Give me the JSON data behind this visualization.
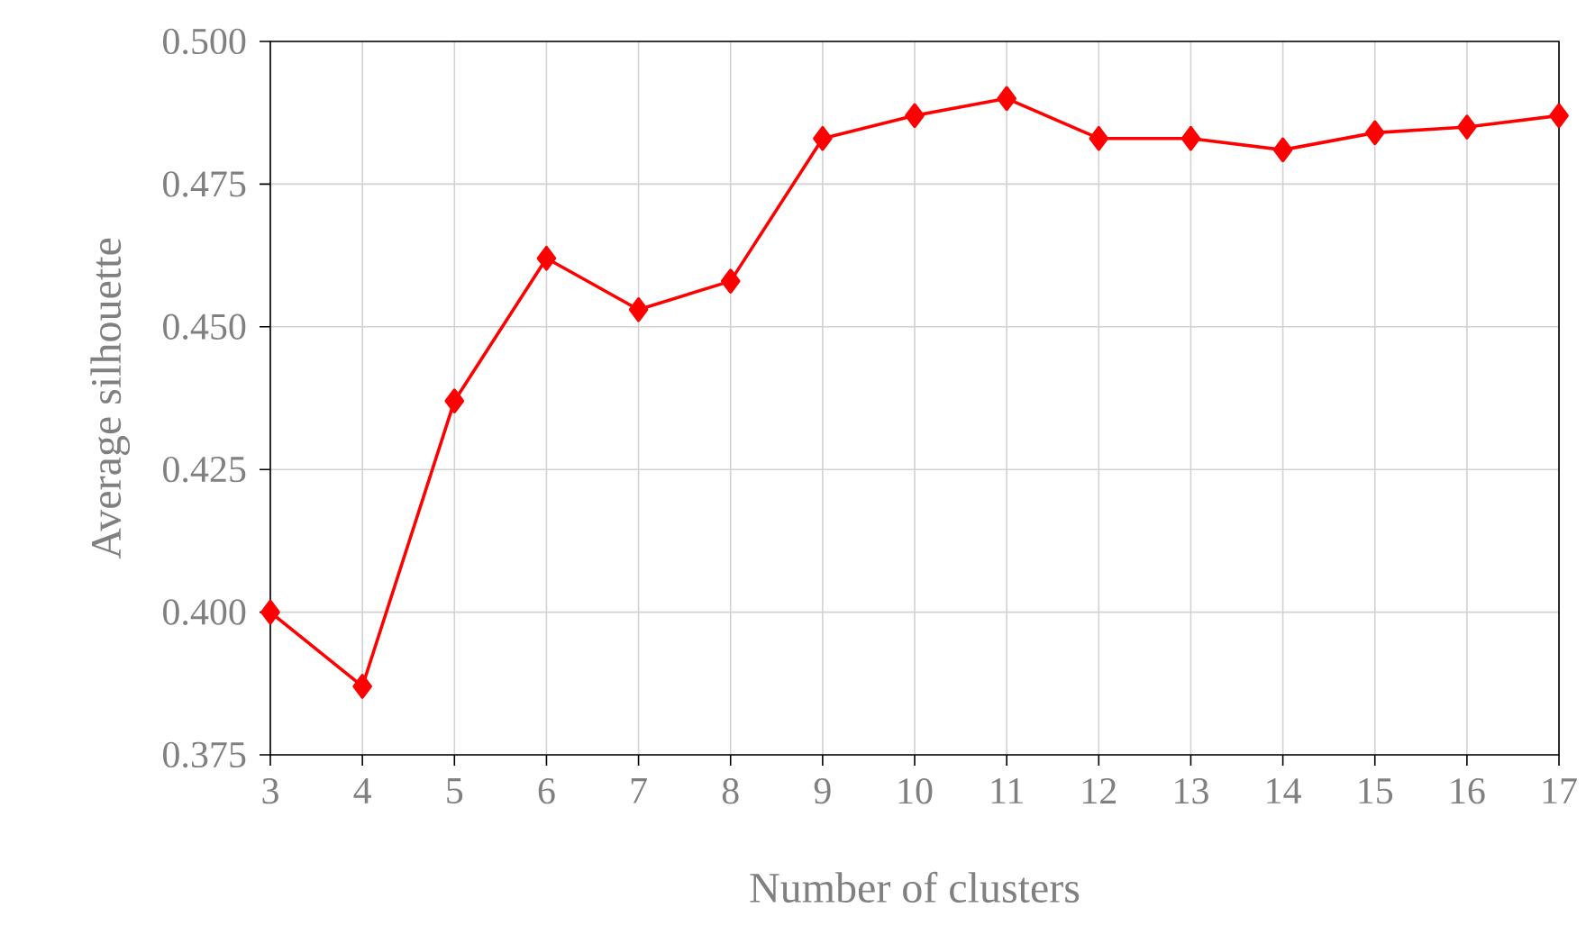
{
  "chart_data": {
    "type": "line",
    "xlabel": "Number of clusters",
    "ylabel": "Average silhouette",
    "x": [
      3,
      4,
      5,
      6,
      7,
      8,
      9,
      10,
      11,
      12,
      13,
      14,
      15,
      16,
      17
    ],
    "series": [
      {
        "color": "#ff0000",
        "values": [
          0.4,
          0.387,
          0.437,
          0.462,
          0.453,
          0.458,
          0.483,
          0.487,
          0.49,
          0.483,
          0.483,
          0.481,
          0.484,
          0.485,
          0.487
        ]
      }
    ],
    "xlim": [
      3,
      17
    ],
    "xticks": [
      3,
      4,
      5,
      6,
      7,
      8,
      9,
      10,
      11,
      12,
      13,
      14,
      15,
      16,
      17
    ],
    "ylim": [
      0.375,
      0.5
    ],
    "yticks": [
      0.375,
      {
        "value": 0.4,
        "label": "0.400"
      },
      {
        "value": 0.425,
        "label": "0.425"
      },
      {
        "value": 0.45,
        "label": "0.450"
      },
      {
        "value": 0.475,
        "label": "0.475"
      },
      {
        "value": 0.5,
        "label": "0.500"
      }
    ],
    "grid": true,
    "marker": "diamond",
    "line_style": "solid"
  }
}
